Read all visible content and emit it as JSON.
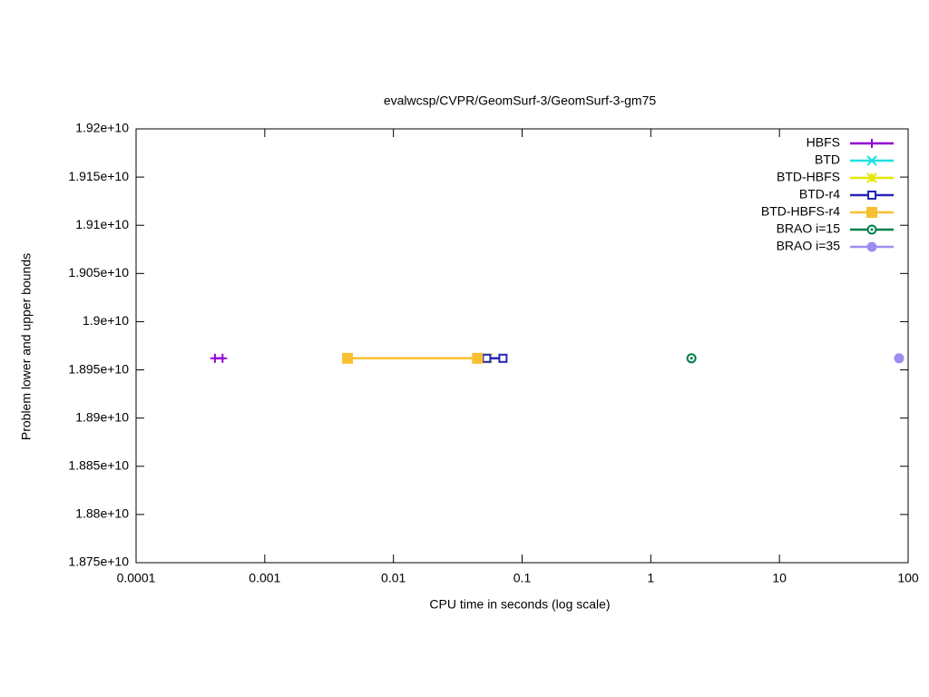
{
  "chart_data": {
    "type": "line",
    "title": "evalwcsp/CVPR/GeomSurf-3/GeomSurf-3-gm75",
    "x_label": "CPU time in seconds (log scale)",
    "y_label": "Problem lower and upper bounds",
    "x_log_scale": true,
    "xlim": [
      0.0001,
      100
    ],
    "xticks": [
      0.0001,
      0.001,
      0.01,
      0.1,
      1,
      10,
      100
    ],
    "ylim": [
      18750000000,
      19200000000
    ],
    "yticks": [
      {
        "value": 18750000000,
        "label": "1.875e+10"
      },
      {
        "value": 18800000000,
        "label": "1.88e+10"
      },
      {
        "value": 18850000000,
        "label": "1.885e+10"
      },
      {
        "value": 18900000000,
        "label": "1.89e+10"
      },
      {
        "value": 18950000000,
        "label": "1.895e+10"
      },
      {
        "value": 19000000000,
        "label": "1.9e+10"
      },
      {
        "value": 19050000000,
        "label": "1.905e+10"
      },
      {
        "value": 19100000000,
        "label": "1.91e+10"
      },
      {
        "value": 19150000000,
        "label": "1.915e+10"
      },
      {
        "value": 19200000000,
        "label": "1.92e+10"
      }
    ],
    "legend_position": "top-right",
    "series": [
      {
        "name": "HBFS",
        "color": "#9400d3",
        "marker": "plus",
        "x": [
          0.00041,
          0.00047
        ],
        "values": [
          18962000000,
          18962000000
        ]
      },
      {
        "name": "BTD",
        "color": "#1ee0e0",
        "marker": "cross",
        "x": [
          0.052,
          0.054
        ],
        "values": [
          18962000000,
          18962000000
        ]
      },
      {
        "name": "BTD-HBFS",
        "color": "#e5e500",
        "marker": "star",
        "x": [
          0.052,
          0.054
        ],
        "values": [
          18962000000,
          18962000000
        ]
      },
      {
        "name": "BTD-r4",
        "color": "#2424b8",
        "marker": "open-square",
        "x": [
          0.053,
          0.071
        ],
        "values": [
          18962000000,
          18962000000
        ]
      },
      {
        "name": "BTD-HBFS-r4",
        "color": "#f8c030",
        "marker": "filled-square",
        "x": [
          0.0044,
          0.045
        ],
        "values": [
          18962000000,
          18962000000
        ]
      },
      {
        "name": "BRAO i=15",
        "color": "#007f4a",
        "marker": "open-circle",
        "x": [
          2.07
        ],
        "values": [
          18962000000
        ]
      },
      {
        "name": "BRAO i=35",
        "color": "#a08cf0",
        "marker": "filled-circle",
        "x": [
          85
        ],
        "values": [
          18962000000
        ]
      }
    ]
  }
}
